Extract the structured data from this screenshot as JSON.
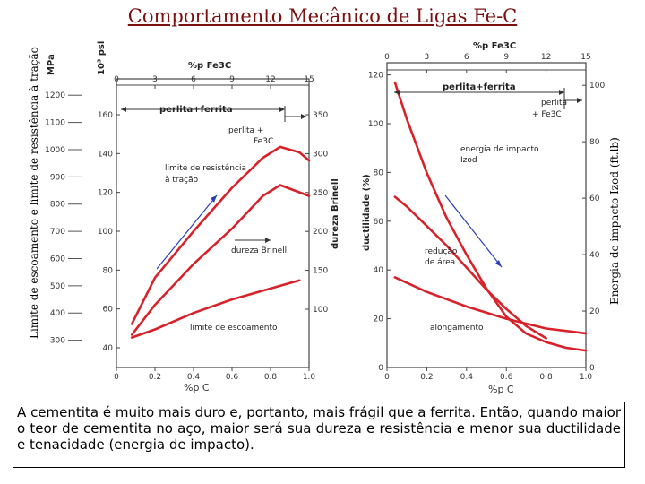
{
  "title": "Comportamento Mecânico de Ligas Fe-C",
  "left_outer_label": "Limite de escoamento e limite de resistência à tração",
  "right_outer_label": "Energia de impacto Izod (ft.lb)",
  "caption": "A cementita é muito mais duro e, portanto, mais frágil que a ferrita. Então, quando maior o teor de cementita no aço, maior será sua dureza e resistência e menor sua ductilidade e tenacidade (energia de impacto).",
  "chart_data": [
    {
      "type": "line",
      "xlabel": "%p C",
      "x_ticks": [
        "0",
        "0.2",
        "0.4",
        "0.6",
        "0.8",
        "1.0"
      ],
      "xlim": [
        0,
        1.0
      ],
      "top_axis_label": "%p Fe3C",
      "top_ticks": [
        "0",
        "3",
        "6",
        "9",
        "12",
        "15"
      ],
      "mpa_unit": "MPa",
      "mpa_ticks": [
        "300",
        "400",
        "500",
        "600",
        "700",
        "800",
        "900",
        "1000",
        "1100",
        "1200"
      ],
      "ksi_unit": "10³ psi",
      "ksi_ticks": [
        "40",
        "60",
        "80",
        "100",
        "120",
        "140",
        "160"
      ],
      "ylim_mpa": [
        200,
        1260
      ],
      "right_axis_label": "dureza Brinell",
      "brinell_ticks": [
        "100",
        "150",
        "200",
        "250",
        "300",
        "350"
      ],
      "annotations": {
        "pearlite_ferrite": "perlita+ferrita",
        "pearlite_fe3c_1": "perlita +",
        "pearlite_fe3c_2": "Fe3C",
        "tensile_1": "limite de resistência",
        "tensile_2": "à tração",
        "hardness": "dureza Brinell",
        "yield": "limite de escoamento"
      },
      "series": [
        {
          "name": "limite de resistência à tração",
          "x": [
            0.08,
            0.2,
            0.4,
            0.6,
            0.76,
            0.85,
            0.95,
            1.0
          ],
          "y": [
            360,
            530,
            700,
            860,
            970,
            1010,
            990,
            960
          ]
        },
        {
          "name": "dureza Brinell",
          "x": [
            0.08,
            0.2,
            0.4,
            0.6,
            0.76,
            0.85,
            1.0
          ],
          "y": [
            320,
            430,
            580,
            710,
            830,
            870,
            830
          ]
        },
        {
          "name": "limite de escoamento",
          "x": [
            0.08,
            0.2,
            0.4,
            0.6,
            0.8,
            0.95
          ],
          "y": [
            310,
            340,
            400,
            450,
            490,
            520
          ]
        }
      ]
    },
    {
      "type": "line",
      "xlabel": "%p C",
      "x_ticks": [
        "0",
        "0.2",
        "0.4",
        "0.6",
        "0.8",
        "1.0"
      ],
      "xlim": [
        0,
        1.0
      ],
      "top_axis_label": "%p Fe3C",
      "top_ticks": [
        "0",
        "3",
        "6",
        "9",
        "12",
        "15"
      ],
      "ylabel": "ductilidade (%)",
      "y_ticks": [
        "0",
        "20",
        "40",
        "60",
        "80",
        "100",
        "120"
      ],
      "ylim": [
        0,
        125
      ],
      "right_ticks": [
        "0",
        "20",
        "40",
        "60",
        "80",
        "100"
      ],
      "ylim_right": [
        0,
        108
      ],
      "annotations": {
        "pearlite_ferrite": "perlita+ferrita",
        "pearlite_fe3c_1": "perlita",
        "pearlite_fe3c_2": "+ Fe3C",
        "impact_1": "energia de impacto",
        "impact_2": "Izod",
        "area_1": "redução",
        "area_2": "de área",
        "elongation": "alongamento"
      },
      "series": [
        {
          "name": "energia de impacto Izod",
          "axis": "right",
          "x": [
            0.04,
            0.1,
            0.2,
            0.3,
            0.4,
            0.5,
            0.6,
            0.7,
            0.8,
            0.9,
            1.0
          ],
          "y": [
            101,
            88,
            69,
            53,
            40,
            28,
            18,
            12,
            9,
            7,
            6
          ]
        },
        {
          "name": "redução de área",
          "axis": "left",
          "x": [
            0.04,
            0.1,
            0.2,
            0.3,
            0.4,
            0.5,
            0.6,
            0.7,
            0.8
          ],
          "y": [
            70,
            66,
            58,
            50,
            41,
            32,
            24,
            17,
            12
          ]
        },
        {
          "name": "alongamento",
          "axis": "left",
          "x": [
            0.04,
            0.2,
            0.4,
            0.6,
            0.8,
            1.0
          ],
          "y": [
            37,
            31,
            25,
            20,
            16,
            14
          ]
        }
      ]
    }
  ]
}
